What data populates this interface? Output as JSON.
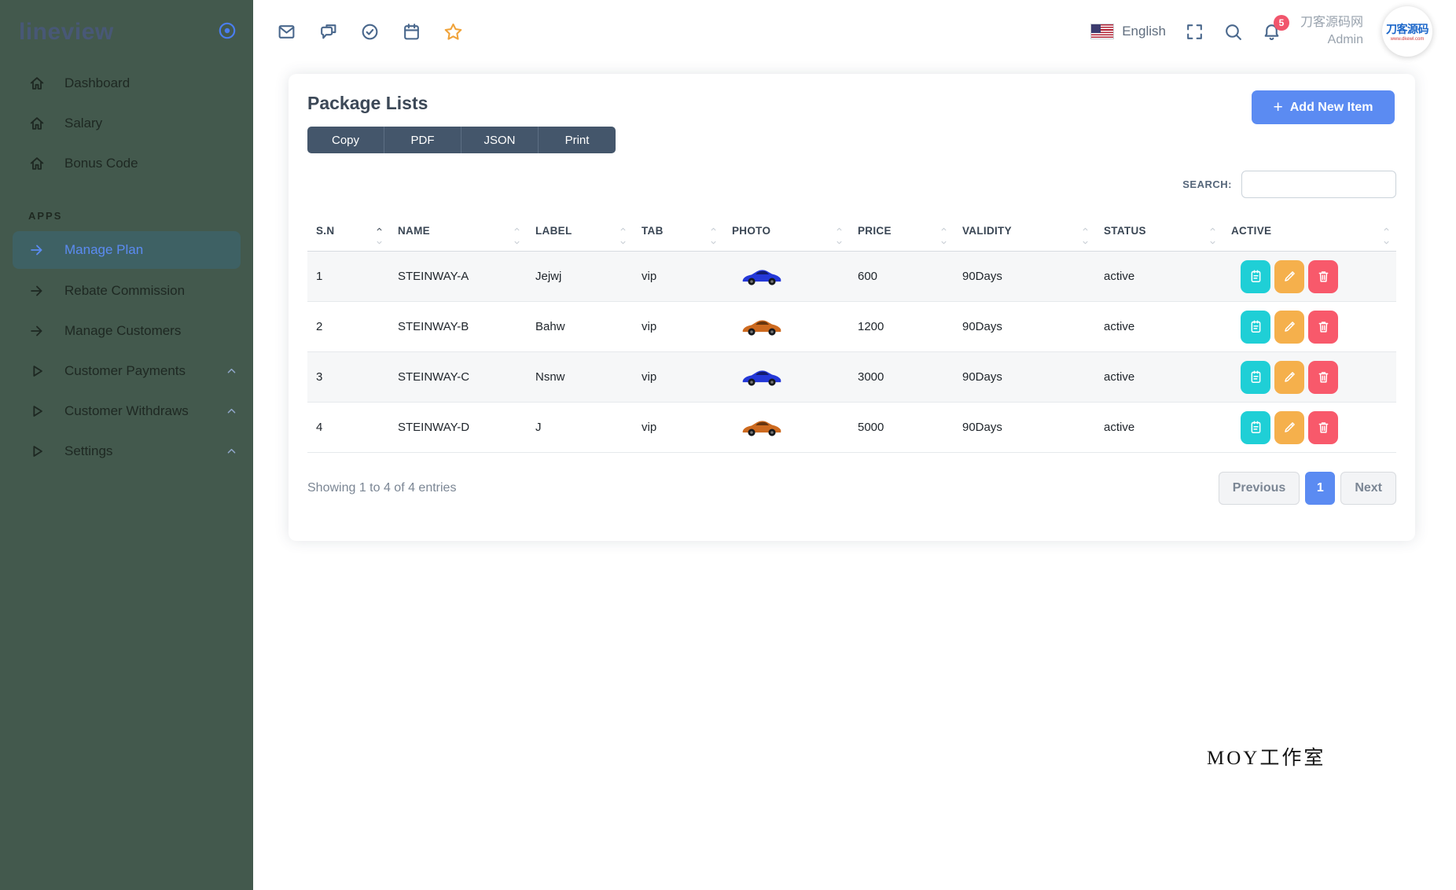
{
  "app": {
    "logo": "lineview"
  },
  "sidebar": {
    "section_label": "APPS",
    "main_items": [
      {
        "label": "Dashboard",
        "icon": "home"
      },
      {
        "label": "Salary",
        "icon": "home"
      },
      {
        "label": "Bonus Code",
        "icon": "home"
      }
    ],
    "app_items": [
      {
        "label": "Manage Plan",
        "icon": "arrow",
        "active": true,
        "collapsible": false
      },
      {
        "label": "Rebate Commission",
        "icon": "arrow",
        "active": false,
        "collapsible": false
      },
      {
        "label": "Manage Customers",
        "icon": "arrow",
        "active": false,
        "collapsible": false
      },
      {
        "label": "Customer Payments",
        "icon": "play",
        "active": false,
        "collapsible": true
      },
      {
        "label": "Customer Withdraws",
        "icon": "play",
        "active": false,
        "collapsible": true
      },
      {
        "label": "Settings",
        "icon": "play",
        "active": false,
        "collapsible": true
      }
    ]
  },
  "header": {
    "language": "English",
    "notification_count": "5",
    "user_org": "刀客源码网",
    "user_role": "Admin",
    "avatar_text": "刀客源码",
    "avatar_subtext": "www.dkewl.com"
  },
  "page": {
    "title": "Package Lists",
    "export_buttons": [
      "Copy",
      "PDF",
      "JSON",
      "Print"
    ],
    "add_icon": "+",
    "add_button": "Add New Item",
    "search_label": "SEARCH:",
    "table": {
      "headers": [
        {
          "label": "S.N",
          "sort": "asc"
        },
        {
          "label": "NAME",
          "sort": "none"
        },
        {
          "label": "LABEL",
          "sort": "none"
        },
        {
          "label": "TAB",
          "sort": "none"
        },
        {
          "label": "PHOTO",
          "sort": "none"
        },
        {
          "label": "PRICE",
          "sort": "none"
        },
        {
          "label": "VALIDITY",
          "sort": "none"
        },
        {
          "label": "STATUS",
          "sort": "none"
        },
        {
          "label": "ACTIVE",
          "sort": "none"
        }
      ],
      "rows": [
        {
          "sn": "1",
          "name": "STEINWAY-A",
          "label": "Jejwj",
          "tab": "vip",
          "photo": "blue-car",
          "price": "600",
          "validity": "90Days",
          "status": "active"
        },
        {
          "sn": "2",
          "name": "STEINWAY-B",
          "label": "Bahw",
          "tab": "vip",
          "photo": "orange-car",
          "price": "1200",
          "validity": "90Days",
          "status": "active"
        },
        {
          "sn": "3",
          "name": "STEINWAY-C",
          "label": "Nsnw",
          "tab": "vip",
          "photo": "blue-car",
          "price": "3000",
          "validity": "90Days",
          "status": "active"
        },
        {
          "sn": "4",
          "name": "STEINWAY-D",
          "label": "J",
          "tab": "vip",
          "photo": "orange-car",
          "price": "5000",
          "validity": "90Days",
          "status": "active"
        }
      ]
    },
    "footer": {
      "summary": "Showing 1 to 4 of 4 entries",
      "pagination": {
        "previous": "Previous",
        "current": "1",
        "next": "Next"
      }
    }
  },
  "watermark": "MOY工作室",
  "colors": {
    "sidebar_bg": "#43594D",
    "active_item_bg": "#3E6164",
    "accent_blue": "#5B8BF2",
    "export_btn_bg": "#44566B",
    "action_view": "#1FCFD6",
    "action_edit": "#F5B04C",
    "action_delete": "#F8596B",
    "badge_red": "#F1556C",
    "star_orange": "#F0A33A",
    "car_blue": "#2438D8",
    "car_orange": "#CD6A1F"
  }
}
